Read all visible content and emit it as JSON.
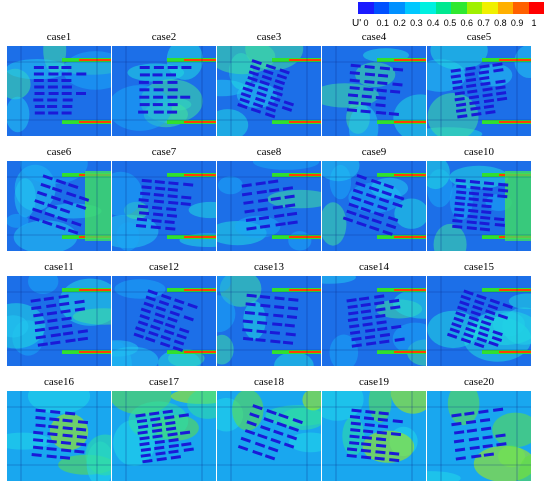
{
  "chart_data": {
    "type": "heatmap",
    "colorbar": {
      "label": "U'",
      "ticks": [
        "0",
        "0.1",
        "0.2",
        "0.3",
        "0.4",
        "0.5",
        "0.6",
        "0.7",
        "0.8",
        "0.9",
        "1"
      ],
      "range": [
        0,
        1
      ],
      "colors": [
        "#1a1aff",
        "#0050ff",
        "#0090ff",
        "#00c8ff",
        "#00f0e0",
        "#00e890",
        "#30e830",
        "#a0f000",
        "#f0f000",
        "#ffb000",
        "#ff6000",
        "#ff0000"
      ]
    },
    "panels": [
      {
        "title": "case1"
      },
      {
        "title": "case2"
      },
      {
        "title": "case3"
      },
      {
        "title": "case4"
      },
      {
        "title": "case5"
      },
      {
        "title": "case6"
      },
      {
        "title": "case7"
      },
      {
        "title": "case8"
      },
      {
        "title": "case9"
      },
      {
        "title": "case10"
      },
      {
        "title": "case11"
      },
      {
        "title": "case12"
      },
      {
        "title": "case13"
      },
      {
        "title": "case14"
      },
      {
        "title": "case15"
      },
      {
        "title": "case16"
      },
      {
        "title": "case17"
      },
      {
        "title": "case18"
      },
      {
        "title": "case19"
      },
      {
        "title": "case20"
      }
    ]
  }
}
